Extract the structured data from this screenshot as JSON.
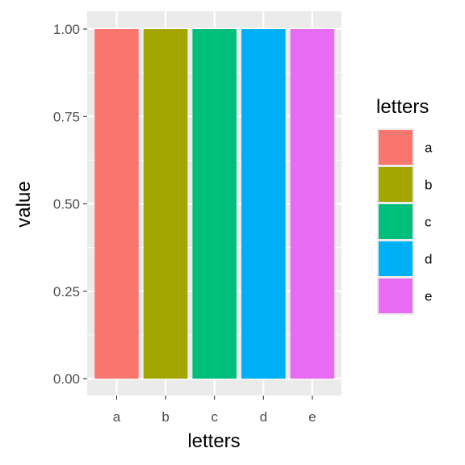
{
  "chart_data": {
    "type": "bar",
    "categories": [
      "a",
      "b",
      "c",
      "d",
      "e"
    ],
    "values": [
      1.0,
      1.0,
      1.0,
      1.0,
      1.0
    ],
    "xlabel": "letters",
    "ylabel": "value",
    "ylim": [
      0,
      1
    ],
    "yticks": [
      "0.00",
      "0.25",
      "0.50",
      "0.75",
      "1.00"
    ],
    "grid": true,
    "legend": {
      "title": "letters",
      "position": "right",
      "entries": [
        "a",
        "b",
        "c",
        "d",
        "e"
      ]
    },
    "colors": [
      "#F8766D",
      "#A3A500",
      "#00BF7D",
      "#00B0F6",
      "#E76BF3"
    ],
    "panel_background": "#EBEBEB",
    "grid_color": "#FFFFFF"
  }
}
